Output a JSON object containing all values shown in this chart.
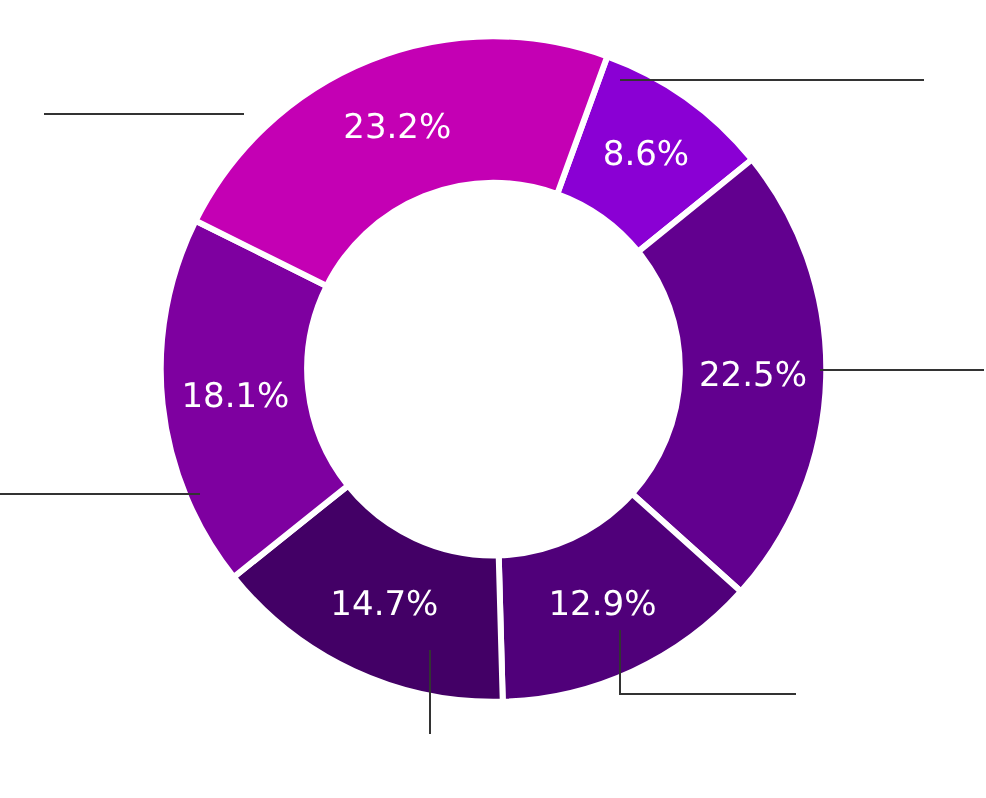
{
  "chart_data": {
    "type": "donut",
    "categories": [
      null,
      null,
      null,
      null,
      null,
      null
    ],
    "values": [
      8.6,
      22.5,
      12.9,
      14.7,
      18.1,
      23.2
    ],
    "colors": [
      "#8a00d4",
      "#62008f",
      "#50007a",
      "#430066",
      "#7e00a0",
      "#c400b4"
    ],
    "value_labels": [
      "8.6%",
      "22.5%",
      "12.9%",
      "14.7%",
      "18.1%",
      "23.2%"
    ],
    "legend": false
  }
}
